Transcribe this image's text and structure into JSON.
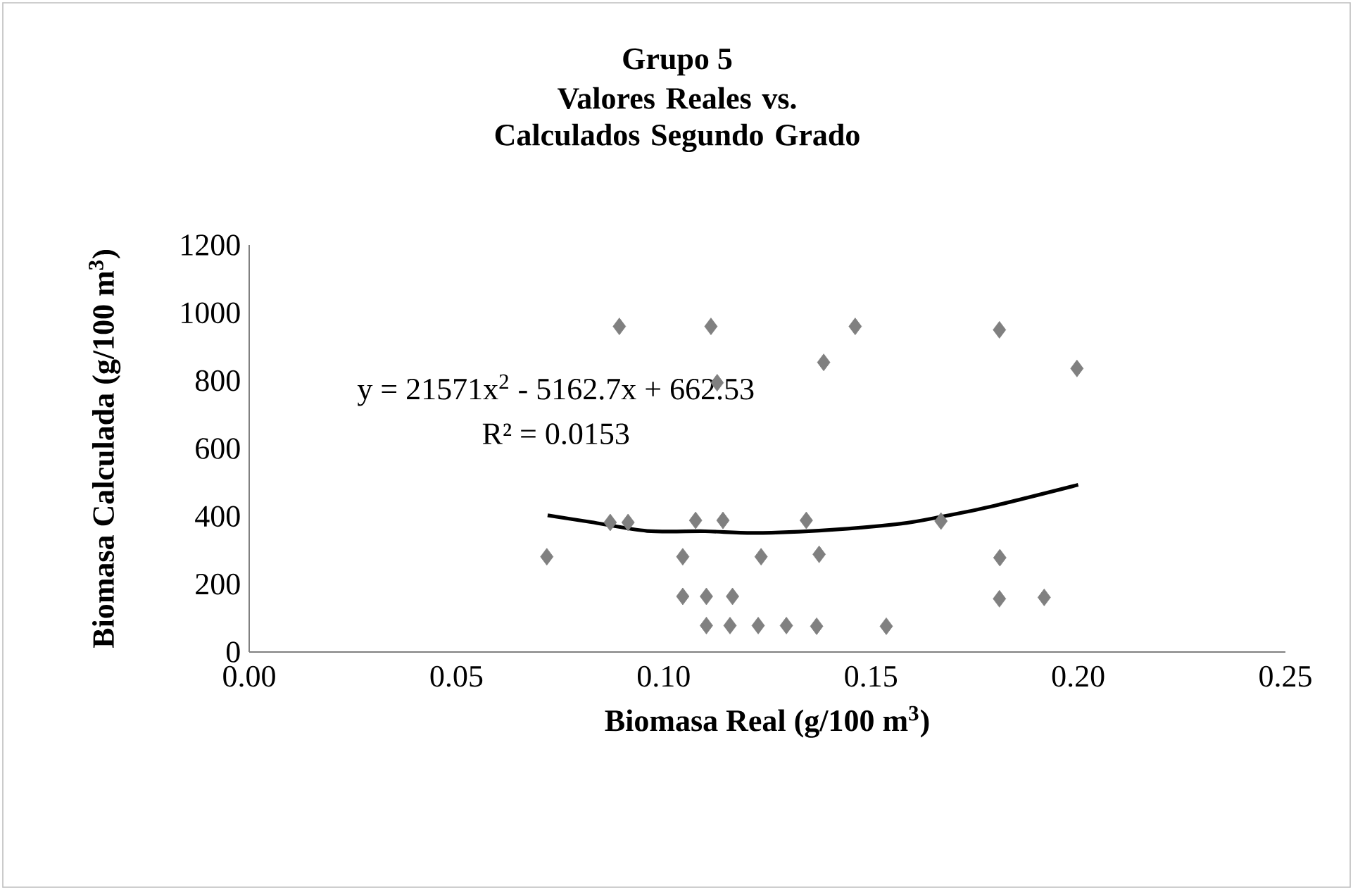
{
  "chart_data": {
    "type": "scatter",
    "title": "Grupo 5",
    "subtitle": "Valores Reales vs. Calculados Segundo Grado",
    "xlabel": "Biomasa Real (g/100 m$^{3}$)",
    "ylabel": "Biomasa Calculada (g/100 m$^{3}$)",
    "annotations": [
      "y = 21571x$^{2}$ - 5162.7x + 662.53",
      "R² = 0.0153"
    ],
    "series": [
      {
        "color": "#808080",
        "marker": "diamond",
        "x": [
          0.0893,
          0.1114,
          0.1129,
          0.0871,
          0.0914,
          0.1077,
          0.1143,
          0.0718,
          0.1046,
          0.1235,
          0.1046,
          0.1103,
          0.1166,
          0.1103,
          0.116,
          0.1228,
          0.1296,
          0.1462,
          0.181,
          0.1386,
          0.1997,
          0.1344,
          0.1669,
          0.1375,
          0.1811,
          0.181,
          0.1918,
          0.1369,
          0.1537
        ],
        "values": [
          960,
          960,
          794,
          382,
          382,
          388,
          388,
          281,
          281,
          281,
          164,
          164,
          164,
          78,
          78,
          78,
          78,
          960,
          950,
          854,
          836,
          388,
          386,
          288,
          278,
          157,
          161,
          76,
          76
        ]
      },
      {
        "type": "line",
        "color": "#000000",
        "marker": "none",
        "x": [
          0.072,
          0.0825,
          0.096,
          0.11,
          0.122,
          0.14,
          0.157,
          0.167,
          0.18,
          0.2
        ],
        "values": [
          403,
          383,
          357,
          356,
          351,
          360,
          378,
          399,
          432,
          493
        ]
      }
    ],
    "xlim": [
      0,
      0.25
    ],
    "ylim": [
      0,
      1200
    ],
    "xticks": [
      {
        "value": 0,
        "label": "0.00"
      },
      {
        "value": 0.05,
        "label": "0.05"
      },
      {
        "value": 0.1,
        "label": "0.10"
      },
      {
        "value": 0.15,
        "label": "0.15"
      },
      {
        "value": 0.2,
        "label": "0.20"
      },
      {
        "value": 0.25,
        "label": "0.25"
      }
    ],
    "yticks": [
      0,
      200,
      400,
      600,
      800,
      1000,
      1200
    ],
    "grid": false
  }
}
